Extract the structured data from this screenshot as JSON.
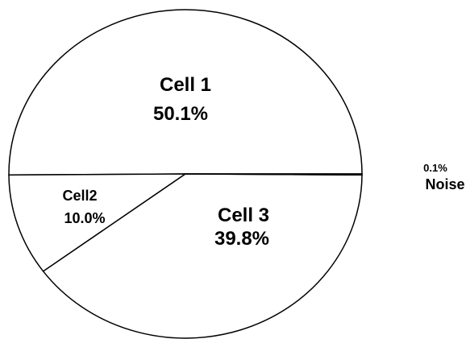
{
  "chart_data": {
    "type": "pie",
    "slices": [
      {
        "label": "Cell 1",
        "value": 50.1,
        "value_text": "50.1%"
      },
      {
        "label": "Cell2",
        "value": 10.0,
        "value_text": "10.0%"
      },
      {
        "label": "Cell 3",
        "value": 39.8,
        "value_text": "39.8%"
      },
      {
        "label": "Noise",
        "value": 0.1,
        "value_text": "0.1%"
      }
    ],
    "title": "",
    "legend": "none",
    "colors": {
      "fill": "#ffffff",
      "stroke": "#000000"
    }
  }
}
